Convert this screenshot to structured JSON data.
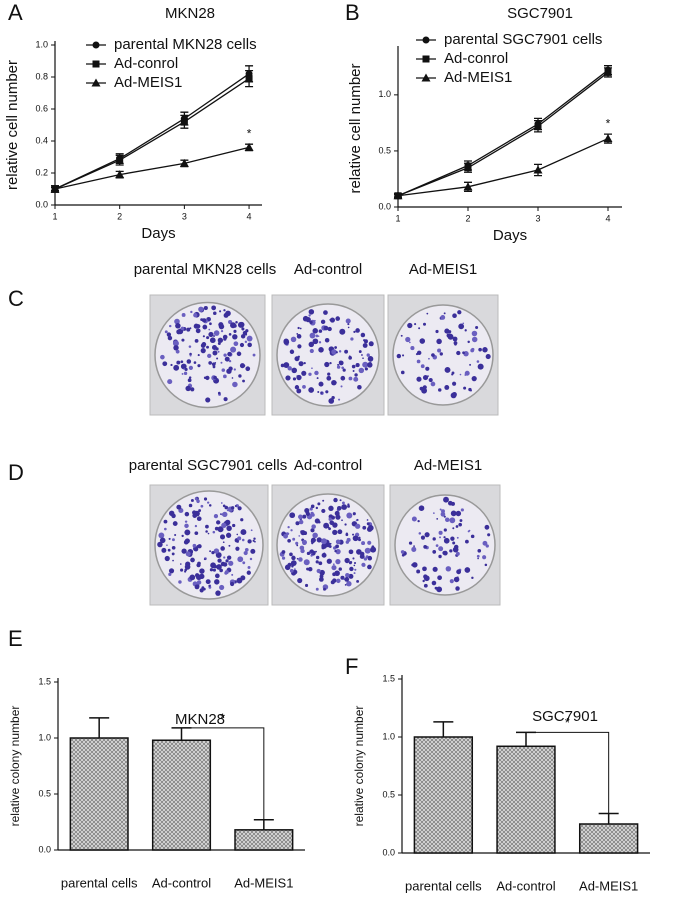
{
  "chart_data": [
    {
      "type": "line",
      "panel": "A",
      "title": "MKN28",
      "xlabel": "Days",
      "ylabel": "relative cell number",
      "x": [
        1,
        2,
        3,
        4
      ],
      "xlim": [
        1,
        4.2
      ],
      "xticks": [
        1,
        2,
        3,
        4
      ],
      "ylim": [
        0,
        1.0
      ],
      "yticks": [
        {
          "value": 0,
          "label": "0.0"
        },
        0.2,
        0.4,
        0.6,
        0.8,
        {
          "value": 1,
          "label": "1.0"
        }
      ],
      "series": [
        {
          "name": "parental MKN28 cells",
          "color": "#111111",
          "marker": "circle",
          "values": [
            0.1,
            0.29,
            0.54,
            0.82
          ],
          "errors": [
            0.02,
            0.03,
            0.04,
            0.05
          ]
        },
        {
          "name": "Ad-conrol",
          "color": "#111111",
          "marker": "square",
          "values": [
            0.1,
            0.28,
            0.52,
            0.79
          ],
          "errors": [
            0.02,
            0.03,
            0.04,
            0.05
          ]
        },
        {
          "name": "Ad-MEIS1",
          "color": "#111111",
          "marker": "triangle",
          "values": [
            0.1,
            0.19,
            0.26,
            0.36
          ],
          "errors": [
            0.01,
            0.02,
            0.02,
            0.02
          ]
        }
      ],
      "annotation": "*"
    },
    {
      "type": "line",
      "panel": "B",
      "title": "SGC7901",
      "xlabel": "Days",
      "ylabel": "relative cell number",
      "x": [
        1,
        2,
        3,
        4
      ],
      "xlim": [
        1,
        4.2
      ],
      "xticks": [
        1,
        2,
        3,
        4
      ],
      "ylim": [
        0,
        1.4
      ],
      "yticks": [
        {
          "value": 0,
          "label": "0.0"
        },
        0.5,
        {
          "value": 1,
          "label": "1.0"
        }
      ],
      "series": [
        {
          "name": "parental SGC7901 cells",
          "color": "#111111",
          "marker": "circle",
          "values": [
            0.1,
            0.37,
            0.74,
            1.22
          ],
          "errors": [
            0.02,
            0.04,
            0.05,
            0.04
          ]
        },
        {
          "name": "Ad-conrol",
          "color": "#111111",
          "marker": "square",
          "values": [
            0.1,
            0.35,
            0.72,
            1.2
          ],
          "errors": [
            0.02,
            0.04,
            0.05,
            0.04
          ]
        },
        {
          "name": "Ad-MEIS1",
          "color": "#111111",
          "marker": "triangle",
          "values": [
            0.1,
            0.18,
            0.33,
            0.61
          ],
          "errors": [
            0.01,
            0.04,
            0.05,
            0.04
          ]
        }
      ],
      "annotation": "*"
    },
    {
      "type": "bar",
      "panel": "E",
      "title": "MKN28",
      "ylabel": "relative colony number",
      "categories": [
        "parental cells",
        "Ad-control",
        "Ad-MEIS1"
      ],
      "values": [
        1.0,
        0.98,
        0.18
      ],
      "errors": [
        0.18,
        0.11,
        0.09
      ],
      "color": "#bdbdbd",
      "ylim": [
        0,
        1.5
      ],
      "yticks": [
        {
          "value": 0,
          "label": "0.0"
        },
        0.5,
        {
          "value": 1,
          "label": "1.0"
        },
        1.5
      ],
      "annotation": "*"
    },
    {
      "type": "bar",
      "panel": "F",
      "title": "SGC7901",
      "ylabel": "relative colony number",
      "categories": [
        "parental cells",
        "Ad-control",
        "Ad-MEIS1"
      ],
      "values": [
        1.0,
        0.92,
        0.25
      ],
      "errors": [
        0.13,
        0.12,
        0.09
      ],
      "color": "#bdbdbd",
      "ylim": [
        0,
        1.5
      ],
      "yticks": [
        {
          "value": 0,
          "label": "0.0"
        },
        0.5,
        {
          "value": 1,
          "label": "1.0"
        },
        1.5
      ],
      "annotation": "*"
    }
  ],
  "photo_panels": [
    {
      "panel": "C",
      "captions": [
        "parental MKN28 cells",
        "Ad-control",
        "Ad-MEIS1"
      ]
    },
    {
      "panel": "D",
      "captions": [
        "parental SGC7901 cells",
        "Ad-control",
        "Ad-MEIS1"
      ]
    }
  ]
}
